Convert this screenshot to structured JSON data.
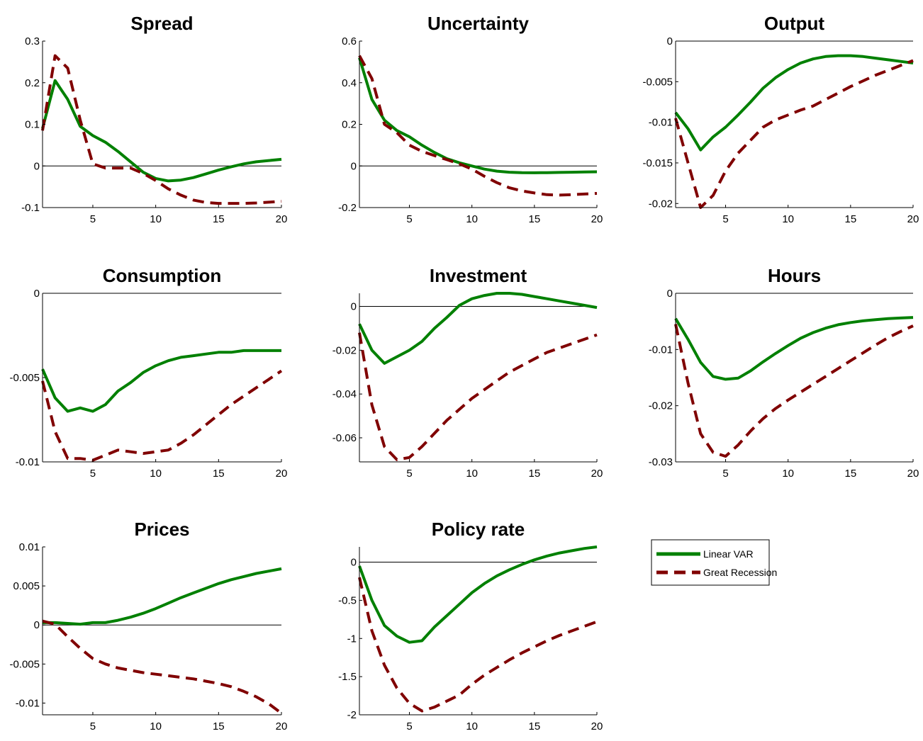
{
  "colors": {
    "linear": "#008000",
    "recession": "#800000",
    "axis": "#000000",
    "zero": "#000000"
  },
  "legend": {
    "labels": [
      "Linear VAR",
      "Great Recession"
    ],
    "placement": "right of Policy rate panel"
  },
  "chart_data": [
    {
      "type": "line",
      "title": "Spread",
      "x": [
        1,
        2,
        3,
        4,
        5,
        6,
        7,
        8,
        9,
        10,
        11,
        12,
        13,
        14,
        15,
        16,
        17,
        18,
        19,
        20
      ],
      "xlim": [
        1,
        20
      ],
      "ylim": [
        -0.1,
        0.3
      ],
      "xticks": [
        5,
        10,
        15,
        20
      ],
      "xtick_labels": [
        "5",
        "10",
        "15",
        "20"
      ],
      "yticks": [
        -0.1,
        0,
        0.1,
        0.2,
        0.3
      ],
      "ytick_labels": [
        "-0.1",
        "0",
        "0.1",
        "0.2",
        "0.3"
      ],
      "series": [
        {
          "name": "Linear VAR",
          "values": [
            0.09,
            0.205,
            0.16,
            0.095,
            0.073,
            0.057,
            0.035,
            0.01,
            -0.015,
            -0.03,
            -0.036,
            -0.034,
            -0.028,
            -0.019,
            -0.01,
            -0.002,
            0.005,
            0.01,
            0.013,
            0.016
          ]
        },
        {
          "name": "Great Recession",
          "values": [
            0.085,
            0.265,
            0.235,
            0.11,
            0.005,
            -0.005,
            -0.005,
            -0.005,
            -0.018,
            -0.035,
            -0.055,
            -0.07,
            -0.082,
            -0.088,
            -0.09,
            -0.09,
            -0.09,
            -0.089,
            -0.087,
            -0.085
          ]
        }
      ]
    },
    {
      "type": "line",
      "title": "Uncertainty",
      "x": [
        1,
        2,
        3,
        4,
        5,
        6,
        7,
        8,
        9,
        10,
        11,
        12,
        13,
        14,
        15,
        16,
        17,
        18,
        19,
        20
      ],
      "xlim": [
        1,
        20
      ],
      "ylim": [
        -0.2,
        0.6
      ],
      "xticks": [
        5,
        10,
        15,
        20
      ],
      "xtick_labels": [
        "5",
        "10",
        "15",
        "20"
      ],
      "yticks": [
        -0.2,
        0,
        0.2,
        0.4,
        0.6
      ],
      "ytick_labels": [
        "-0.2",
        "0",
        "0.2",
        "0.4",
        "0.6"
      ],
      "series": [
        {
          "name": "Linear VAR",
          "values": [
            0.52,
            0.32,
            0.22,
            0.17,
            0.14,
            0.1,
            0.065,
            0.035,
            0.015,
            0,
            -0.015,
            -0.025,
            -0.03,
            -0.032,
            -0.033,
            -0.032,
            -0.031,
            -0.03,
            -0.029,
            -0.028
          ]
        },
        {
          "name": "Great Recession",
          "values": [
            0.53,
            0.42,
            0.2,
            0.16,
            0.1,
            0.07,
            0.05,
            0.03,
            0.01,
            -0.015,
            -0.05,
            -0.08,
            -0.105,
            -0.12,
            -0.13,
            -0.138,
            -0.14,
            -0.138,
            -0.135,
            -0.132
          ]
        }
      ]
    },
    {
      "type": "line",
      "title": "Output",
      "x": [
        1,
        2,
        3,
        4,
        5,
        6,
        7,
        8,
        9,
        10,
        11,
        12,
        13,
        14,
        15,
        16,
        17,
        18,
        19,
        20
      ],
      "xlim": [
        1,
        20
      ],
      "ylim": [
        -0.0205,
        0
      ],
      "xticks": [
        5,
        10,
        15,
        20
      ],
      "xtick_labels": [
        "5",
        "10",
        "15",
        "20"
      ],
      "yticks": [
        -0.02,
        -0.015,
        -0.01,
        -0.005,
        0
      ],
      "ytick_labels": [
        "-0.02",
        "-0.015",
        "-0.01",
        "-0.005",
        "0"
      ],
      "series": [
        {
          "name": "Linear VAR",
          "values": [
            -0.0088,
            -0.0108,
            -0.0134,
            -0.0118,
            -0.0106,
            -0.0091,
            -0.0075,
            -0.0058,
            -0.0045,
            -0.0035,
            -0.0027,
            -0.0022,
            -0.0019,
            -0.0018,
            -0.0018,
            -0.0019,
            -0.0021,
            -0.0023,
            -0.0025,
            -0.0027
          ]
        },
        {
          "name": "Great Recession",
          "values": [
            -0.0095,
            -0.015,
            -0.0205,
            -0.019,
            -0.016,
            -0.0138,
            -0.0122,
            -0.0106,
            -0.0097,
            -0.0091,
            -0.0085,
            -0.008,
            -0.0072,
            -0.0064,
            -0.0056,
            -0.0049,
            -0.0042,
            -0.0036,
            -0.003,
            -0.0024
          ]
        }
      ]
    },
    {
      "type": "line",
      "title": "Consumption",
      "x": [
        1,
        2,
        3,
        4,
        5,
        6,
        7,
        8,
        9,
        10,
        11,
        12,
        13,
        14,
        15,
        16,
        17,
        18,
        19,
        20
      ],
      "xlim": [
        1,
        20
      ],
      "ylim": [
        -0.01,
        0
      ],
      "xticks": [
        5,
        10,
        15,
        20
      ],
      "xtick_labels": [
        "5",
        "10",
        "15",
        "20"
      ],
      "yticks": [
        -0.01,
        -0.005,
        0
      ],
      "ytick_labels": [
        "-0.01",
        "-0.005",
        "0"
      ],
      "series": [
        {
          "name": "Linear VAR",
          "values": [
            -0.0045,
            -0.0062,
            -0.007,
            -0.0068,
            -0.007,
            -0.0066,
            -0.0058,
            -0.0053,
            -0.0047,
            -0.0043,
            -0.004,
            -0.0038,
            -0.0037,
            -0.0036,
            -0.0035,
            -0.0035,
            -0.0034,
            -0.0034,
            -0.0034,
            -0.0034
          ]
        },
        {
          "name": "Great Recession",
          "values": [
            -0.0052,
            -0.0082,
            -0.0098,
            -0.0098,
            -0.0099,
            -0.0096,
            -0.0093,
            -0.0094,
            -0.0095,
            -0.0094,
            -0.0093,
            -0.0089,
            -0.0084,
            -0.0078,
            -0.0072,
            -0.0066,
            -0.0061,
            -0.0056,
            -0.0051,
            -0.0046
          ]
        }
      ]
    },
    {
      "type": "line",
      "title": "Investment",
      "x": [
        1,
        2,
        3,
        4,
        5,
        6,
        7,
        8,
        9,
        10,
        11,
        12,
        13,
        14,
        15,
        16,
        17,
        18,
        19,
        20
      ],
      "xlim": [
        1,
        20
      ],
      "ylim": [
        -0.071,
        0.006
      ],
      "xticks": [
        5,
        10,
        15,
        20
      ],
      "xtick_labels": [
        "5",
        "10",
        "15",
        "20"
      ],
      "yticks": [
        -0.06,
        -0.04,
        -0.02,
        0
      ],
      "ytick_labels": [
        "-0.06",
        "-0.04",
        "-0.02",
        "0"
      ],
      "series": [
        {
          "name": "Linear VAR",
          "values": [
            -0.008,
            -0.02,
            -0.026,
            -0.023,
            -0.02,
            -0.016,
            -0.01,
            -0.005,
            0.0005,
            0.0035,
            0.005,
            0.006,
            0.006,
            0.0055,
            0.0045,
            0.0035,
            0.0025,
            0.0015,
            0.0005,
            -0.0005
          ]
        },
        {
          "name": "Great Recession",
          "values": [
            -0.012,
            -0.045,
            -0.064,
            -0.07,
            -0.069,
            -0.064,
            -0.058,
            -0.052,
            -0.047,
            -0.042,
            -0.038,
            -0.034,
            -0.03,
            -0.027,
            -0.024,
            -0.021,
            -0.019,
            -0.017,
            -0.015,
            -0.013
          ]
        }
      ]
    },
    {
      "type": "line",
      "title": "Hours",
      "x": [
        1,
        2,
        3,
        4,
        5,
        6,
        7,
        8,
        9,
        10,
        11,
        12,
        13,
        14,
        15,
        16,
        17,
        18,
        19,
        20
      ],
      "xlim": [
        1,
        20
      ],
      "ylim": [
        -0.03,
        0
      ],
      "xticks": [
        5,
        10,
        15,
        20
      ],
      "xtick_labels": [
        "5",
        "10",
        "15",
        "20"
      ],
      "yticks": [
        -0.03,
        -0.02,
        -0.01,
        0
      ],
      "ytick_labels": [
        "-0.03",
        "-0.02",
        "-0.01",
        "0"
      ],
      "series": [
        {
          "name": "Linear VAR",
          "values": [
            -0.0045,
            -0.0082,
            -0.0123,
            -0.0148,
            -0.0153,
            -0.0151,
            -0.0138,
            -0.0122,
            -0.0107,
            -0.0093,
            -0.008,
            -0.007,
            -0.0062,
            -0.0056,
            -0.0052,
            -0.0049,
            -0.0047,
            -0.0045,
            -0.0044,
            -0.0043
          ]
        },
        {
          "name": "Great Recession",
          "values": [
            -0.0055,
            -0.016,
            -0.025,
            -0.0283,
            -0.029,
            -0.027,
            -0.0245,
            -0.0223,
            -0.0205,
            -0.019,
            -0.0176,
            -0.0162,
            -0.0148,
            -0.0134,
            -0.012,
            -0.0106,
            -0.0092,
            -0.0079,
            -0.0068,
            -0.0058
          ]
        }
      ]
    },
    {
      "type": "line",
      "title": "Prices",
      "x": [
        1,
        2,
        3,
        4,
        5,
        6,
        7,
        8,
        9,
        10,
        11,
        12,
        13,
        14,
        15,
        16,
        17,
        18,
        19,
        20
      ],
      "xlim": [
        1,
        20
      ],
      "ylim": [
        -0.0115,
        0.01
      ],
      "xticks": [
        5,
        10,
        15,
        20
      ],
      "xtick_labels": [
        "5",
        "10",
        "15",
        "20"
      ],
      "yticks": [
        -0.01,
        -0.005,
        0,
        0.005,
        0.01
      ],
      "ytick_labels": [
        "-0.01",
        "-0.005",
        "0",
        "0.005",
        "0.01"
      ],
      "series": [
        {
          "name": "Linear VAR",
          "values": [
            0.0003,
            0.0003,
            0.0002,
            0.0001,
            0.0003,
            0.0003,
            0.0006,
            0.001,
            0.0015,
            0.0021,
            0.0028,
            0.0035,
            0.0041,
            0.0047,
            0.0053,
            0.0058,
            0.0062,
            0.0066,
            0.0069,
            0.0072
          ]
        },
        {
          "name": "Great Recession",
          "values": [
            0.0005,
            0.0001,
            -0.0015,
            -0.003,
            -0.0043,
            -0.005,
            -0.0055,
            -0.0058,
            -0.0061,
            -0.0063,
            -0.0065,
            -0.0067,
            -0.0069,
            -0.0072,
            -0.0075,
            -0.0079,
            -0.0085,
            -0.0092,
            -0.0101,
            -0.0113
          ]
        }
      ]
    },
    {
      "type": "line",
      "title": "Policy rate",
      "x": [
        1,
        2,
        3,
        4,
        5,
        6,
        7,
        8,
        9,
        10,
        11,
        12,
        13,
        14,
        15,
        16,
        17,
        18,
        19,
        20
      ],
      "xlim": [
        1,
        20
      ],
      "ylim": [
        -2,
        0.2
      ],
      "xticks": [
        5,
        10,
        15,
        20
      ],
      "xtick_labels": [
        "5",
        "10",
        "15",
        "20"
      ],
      "yticks": [
        -2,
        -1.5,
        -1,
        -0.5,
        0
      ],
      "ytick_labels": [
        "-2",
        "-1.5",
        "-1",
        "-0.5",
        "0"
      ],
      "series": [
        {
          "name": "Linear VAR",
          "values": [
            -0.05,
            -0.5,
            -0.83,
            -0.97,
            -1.05,
            -1.03,
            -0.85,
            -0.7,
            -0.55,
            -0.4,
            -0.28,
            -0.18,
            -0.1,
            -0.03,
            0.03,
            0.08,
            0.12,
            0.15,
            0.18,
            0.2
          ]
        },
        {
          "name": "Great Recession",
          "values": [
            -0.2,
            -0.9,
            -1.35,
            -1.65,
            -1.85,
            -1.95,
            -1.9,
            -1.82,
            -1.74,
            -1.6,
            -1.48,
            -1.38,
            -1.28,
            -1.19,
            -1.11,
            -1.03,
            -0.96,
            -0.9,
            -0.84,
            -0.78
          ]
        }
      ]
    }
  ]
}
